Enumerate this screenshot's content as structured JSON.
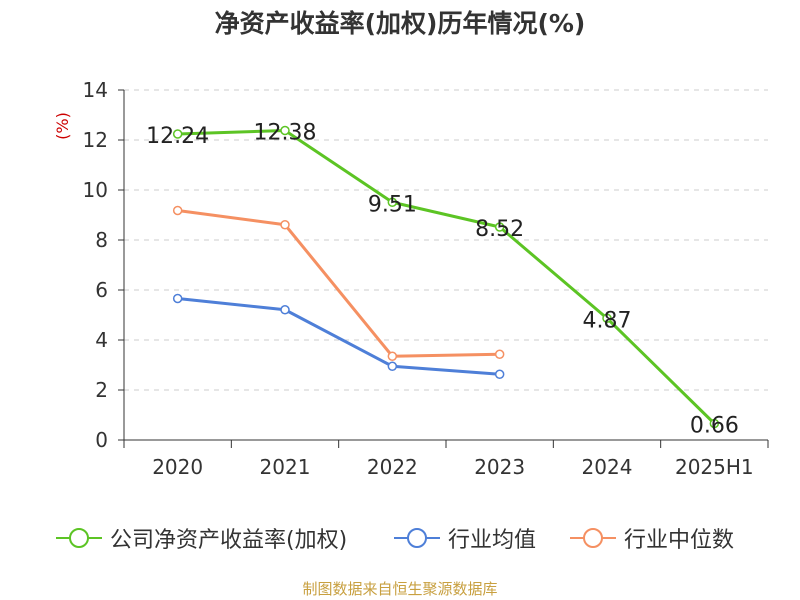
{
  "chart_data": {
    "type": "line",
    "title": "净资产收益率(加权)历年情况(%)",
    "ylabel": "(%)",
    "xlabel": "",
    "categories": [
      "2020",
      "2021",
      "2022",
      "2023",
      "2024",
      "2025H1"
    ],
    "ylim": [
      0,
      14
    ],
    "yticks": [
      0,
      2,
      4,
      6,
      8,
      10,
      12,
      14
    ],
    "grid": true,
    "legend_position": "bottom",
    "series": [
      {
        "name": "公司净资产收益率(加权)",
        "color": "#5cc424",
        "values": [
          12.24,
          12.38,
          9.51,
          8.52,
          4.87,
          0.66
        ],
        "labels": [
          "12.24",
          "12.38",
          "9.51",
          "8.52",
          "4.87",
          "0.66"
        ]
      },
      {
        "name": "行业均值",
        "color": "#4e7fd8",
        "values": [
          5.66,
          5.21,
          2.95,
          2.63,
          null,
          null
        ]
      },
      {
        "name": "行业中位数",
        "color": "#f59062",
        "values": [
          9.18,
          8.61,
          3.35,
          3.43,
          null,
          null
        ]
      }
    ]
  },
  "source_note": "制图数据来自恒生聚源数据库"
}
